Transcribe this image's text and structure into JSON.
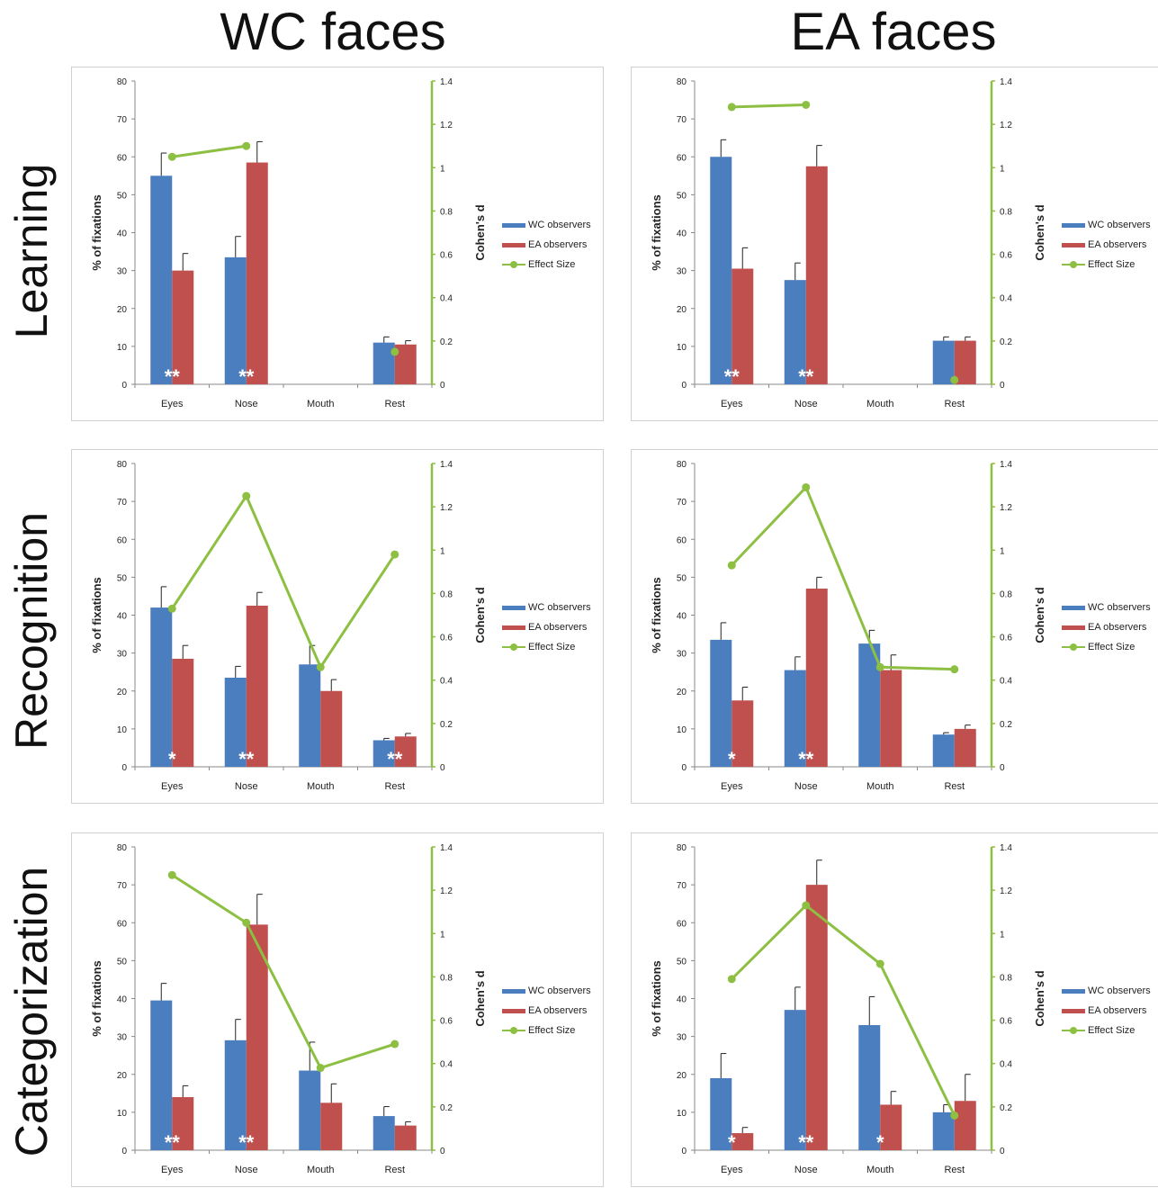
{
  "columns": [
    "WC faces",
    "EA faces"
  ],
  "rows": [
    "Learning",
    "Recognition",
    "Categorization"
  ],
  "colors": {
    "wc": "#4a7ebf",
    "ea": "#c0504d",
    "effect": "#8dbf42"
  },
  "chart_data": [
    {
      "type": "bar",
      "title": "",
      "row": "Learning",
      "column": "WC faces",
      "categories": [
        "Eyes",
        "Nose",
        "Mouth",
        "Rest"
      ],
      "ylabel": "% of fixations",
      "y2label": "Cohen's d",
      "ylim": [
        0,
        80
      ],
      "y2lim": [
        0,
        1.4
      ],
      "yticks": [
        "0",
        "10",
        "20",
        "30",
        "40",
        "50",
        "60",
        "70",
        "80"
      ],
      "y2ticks": [
        "0",
        "0.2",
        "0.4",
        "0.6",
        "0.8",
        "1",
        "1.2",
        "1.4"
      ],
      "series": [
        {
          "name": "WC observers",
          "values": [
            55,
            33.5,
            null,
            11
          ],
          "errors": [
            6,
            5.5,
            null,
            1.5
          ]
        },
        {
          "name": "EA observers",
          "values": [
            30,
            58.5,
            null,
            10.5
          ],
          "errors": [
            4.5,
            5.5,
            null,
            1
          ]
        }
      ],
      "effect": {
        "name": "Effect Size",
        "values": [
          1.05,
          1.1,
          null,
          0.15
        ]
      },
      "significance": [
        "**",
        "**",
        "",
        ""
      ],
      "legend_position": "right"
    },
    {
      "type": "bar",
      "title": "",
      "row": "Learning",
      "column": "EA faces",
      "categories": [
        "Eyes",
        "Nose",
        "Mouth",
        "Rest"
      ],
      "ylabel": "% of fixations",
      "y2label": "Cohen's d",
      "ylim": [
        0,
        80
      ],
      "y2lim": [
        0,
        1.4
      ],
      "yticks": [
        "0",
        "10",
        "20",
        "30",
        "40",
        "50",
        "60",
        "70",
        "80"
      ],
      "y2ticks": [
        "0",
        "0.2",
        "0.4",
        "0.6",
        "0.8",
        "1",
        "1.2",
        "1.4"
      ],
      "series": [
        {
          "name": "WC observers",
          "values": [
            60,
            27.5,
            null,
            11.5
          ],
          "errors": [
            4.5,
            4.5,
            null,
            1
          ]
        },
        {
          "name": "EA observers",
          "values": [
            30.5,
            57.5,
            null,
            11.5
          ],
          "errors": [
            5.5,
            5.5,
            null,
            1
          ]
        }
      ],
      "effect": {
        "name": "Effect Size",
        "values": [
          1.28,
          1.29,
          null,
          0.02
        ]
      },
      "significance": [
        "**",
        "**",
        "",
        ""
      ],
      "legend_position": "right"
    },
    {
      "type": "bar",
      "title": "",
      "row": "Recognition",
      "column": "WC faces",
      "categories": [
        "Eyes",
        "Nose",
        "Mouth",
        "Rest"
      ],
      "ylabel": "% of fixations",
      "y2label": "Cohen's d",
      "ylim": [
        0,
        80
      ],
      "y2lim": [
        0,
        1.4
      ],
      "yticks": [
        "0",
        "10",
        "20",
        "30",
        "40",
        "50",
        "60",
        "70",
        "80"
      ],
      "y2ticks": [
        "0",
        "0.2",
        "0.4",
        "0.6",
        "0.8",
        "1",
        "1.2",
        "1.4"
      ],
      "series": [
        {
          "name": "WC observers",
          "values": [
            42,
            23.5,
            27,
            7
          ],
          "errors": [
            5.5,
            3,
            5,
            0.5
          ]
        },
        {
          "name": "EA observers",
          "values": [
            28.5,
            42.5,
            20,
            8
          ],
          "errors": [
            3.5,
            3.5,
            3,
            0.8
          ]
        }
      ],
      "effect": {
        "name": "Effect Size",
        "values": [
          0.73,
          1.25,
          0.46,
          0.98
        ]
      },
      "significance": [
        "*",
        "**",
        "",
        "**"
      ],
      "legend_position": "right"
    },
    {
      "type": "bar",
      "title": "",
      "row": "Recognition",
      "column": "EA faces",
      "categories": [
        "Eyes",
        "Nose",
        "Mouth",
        "Rest"
      ],
      "ylabel": "% of fixations",
      "y2label": "Cohen's d",
      "ylim": [
        0,
        80
      ],
      "y2lim": [
        0,
        1.4
      ],
      "yticks": [
        "0",
        "10",
        "20",
        "30",
        "40",
        "50",
        "60",
        "70",
        "80"
      ],
      "y2ticks": [
        "0",
        "0.2",
        "0.4",
        "0.6",
        "0.8",
        "1",
        "1.2",
        "1.4"
      ],
      "series": [
        {
          "name": "WC observers",
          "values": [
            33.5,
            25.5,
            32.5,
            8.5
          ],
          "errors": [
            4.5,
            3.5,
            3.5,
            0.5
          ]
        },
        {
          "name": "EA observers",
          "values": [
            17.5,
            47,
            25.5,
            10
          ],
          "errors": [
            3.5,
            3,
            4,
            1
          ]
        }
      ],
      "effect": {
        "name": "Effect Size",
        "values": [
          0.93,
          1.29,
          0.46,
          0.45
        ]
      },
      "significance": [
        "*",
        "**",
        "",
        ""
      ],
      "legend_position": "right"
    },
    {
      "type": "bar",
      "title": "",
      "row": "Categorization",
      "column": "WC faces",
      "categories": [
        "Eyes",
        "Nose",
        "Mouth",
        "Rest"
      ],
      "ylabel": "% of fixations",
      "y2label": "Cohen's d",
      "ylim": [
        0,
        80
      ],
      "y2lim": [
        0,
        1.4
      ],
      "yticks": [
        "0",
        "10",
        "20",
        "30",
        "40",
        "50",
        "60",
        "70",
        "80"
      ],
      "y2ticks": [
        "0",
        "0.2",
        "0.4",
        "0.6",
        "0.8",
        "1",
        "1.2",
        "1.4"
      ],
      "series": [
        {
          "name": "WC observers",
          "values": [
            39.5,
            29,
            21,
            9
          ],
          "errors": [
            4.5,
            5.5,
            7.5,
            2.5
          ]
        },
        {
          "name": "EA observers",
          "values": [
            14,
            59.5,
            12.5,
            6.5
          ],
          "errors": [
            3,
            8,
            5,
            1
          ]
        }
      ],
      "effect": {
        "name": "Effect Size",
        "values": [
          1.27,
          1.05,
          0.38,
          0.49
        ]
      },
      "significance": [
        "**",
        "**",
        "",
        ""
      ],
      "legend_position": "right"
    },
    {
      "type": "bar",
      "title": "",
      "row": "Categorization",
      "column": "EA faces",
      "categories": [
        "Eyes",
        "Nose",
        "Mouth",
        "Rest"
      ],
      "ylabel": "% of fixations",
      "y2label": "Cohen's d",
      "ylim": [
        0,
        80
      ],
      "y2lim": [
        0,
        1.4
      ],
      "yticks": [
        "0",
        "10",
        "20",
        "30",
        "40",
        "50",
        "60",
        "70",
        "80"
      ],
      "y2ticks": [
        "0",
        "0.2",
        "0.4",
        "0.6",
        "0.8",
        "1",
        "1.2",
        "1.4"
      ],
      "series": [
        {
          "name": "WC observers",
          "values": [
            19,
            37,
            33,
            10
          ],
          "errors": [
            6.5,
            6,
            7.5,
            2
          ]
        },
        {
          "name": "EA observers",
          "values": [
            4.5,
            70,
            12,
            13
          ],
          "errors": [
            1.5,
            6.5,
            3.5,
            7
          ]
        }
      ],
      "effect": {
        "name": "Effect Size",
        "values": [
          0.79,
          1.13,
          0.86,
          0.16
        ]
      },
      "significance": [
        "*",
        "**",
        "*",
        ""
      ],
      "legend_position": "right"
    }
  ]
}
